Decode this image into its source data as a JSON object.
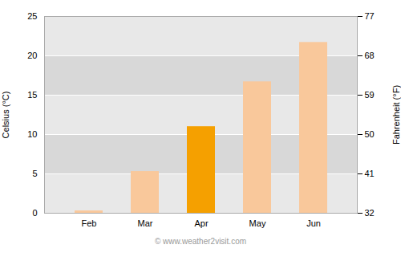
{
  "chart_data": {
    "type": "bar",
    "categories": [
      "Feb",
      "Mar",
      "Apr",
      "May",
      "Jun"
    ],
    "values": [
      0.3,
      5.3,
      11.0,
      16.7,
      21.7
    ],
    "colors": [
      "#f9c89b",
      "#f9c89b",
      "#f5a000",
      "#f9c89b",
      "#f9c89b"
    ],
    "ylabel": "Celsius (°C)",
    "y2label": "Fahrenheit (°F)",
    "ylim": [
      0,
      25
    ],
    "yticks": [
      0,
      5,
      10,
      15,
      20,
      25
    ],
    "y2lim": [
      32,
      77
    ],
    "y2ticks": [
      32,
      41,
      50,
      59,
      68,
      77
    ],
    "grid": true,
    "annotation": "© www.weather2visit.com"
  }
}
